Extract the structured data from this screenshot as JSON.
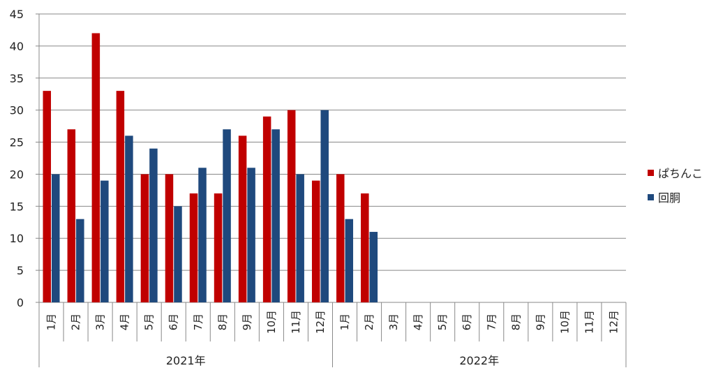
{
  "chart_data": {
    "type": "bar",
    "ylim": [
      0,
      45
    ],
    "yticks": [
      0,
      5,
      10,
      15,
      20,
      25,
      30,
      35,
      40,
      45
    ],
    "categories": [
      "1月",
      "2月",
      "3月",
      "4月",
      "5月",
      "6月",
      "7月",
      "8月",
      "9月",
      "10月",
      "11月",
      "12月",
      "1月",
      "2月",
      "3月",
      "4月",
      "5月",
      "6月",
      "7月",
      "8月",
      "9月",
      "10月",
      "11月",
      "12月"
    ],
    "groups": [
      {
        "label": "2021年",
        "count": 12
      },
      {
        "label": "2022年",
        "count": 12
      }
    ],
    "series": [
      {
        "name": "ぱちんこ",
        "color": "#C00000",
        "values": [
          33,
          27,
          42,
          33,
          20,
          20,
          17,
          17,
          26,
          29,
          30,
          19,
          20,
          17,
          null,
          null,
          null,
          null,
          null,
          null,
          null,
          null,
          null,
          null
        ]
      },
      {
        "name": "回胴",
        "color": "#1F497D",
        "values": [
          20,
          13,
          19,
          26,
          24,
          15,
          21,
          27,
          21,
          27,
          20,
          30,
          13,
          11,
          null,
          null,
          null,
          null,
          null,
          null,
          null,
          null,
          null,
          null
        ]
      }
    ],
    "grid": true,
    "legend": "right"
  }
}
